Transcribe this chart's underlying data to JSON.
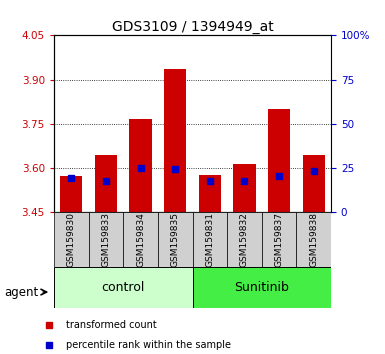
{
  "title": "GDS3109 / 1394949_at",
  "samples": [
    "GSM159830",
    "GSM159833",
    "GSM159834",
    "GSM159835",
    "GSM159831",
    "GSM159832",
    "GSM159837",
    "GSM159838"
  ],
  "groups": [
    "control",
    "control",
    "control",
    "control",
    "Sunitinib",
    "Sunitinib",
    "Sunitinib",
    "Sunitinib"
  ],
  "red_values": [
    3.575,
    3.645,
    3.765,
    3.935,
    3.577,
    3.615,
    3.8,
    3.645
  ],
  "blue_values": [
    3.568,
    3.557,
    3.6,
    3.597,
    3.558,
    3.555,
    3.575,
    3.59
  ],
  "y_min": 3.45,
  "y_max": 4.05,
  "y_ticks_left": [
    3.45,
    3.6,
    3.75,
    3.9,
    4.05
  ],
  "y_ticks_right": [
    0,
    25,
    50,
    75,
    100
  ],
  "grid_values": [
    3.6,
    3.75,
    3.9
  ],
  "bar_color": "#cc0000",
  "blue_color": "#0000cc",
  "control_color": "#ccffcc",
  "sunitinib_color": "#44ee44",
  "tick_color_left": "#cc0000",
  "tick_color_right": "#0000cc",
  "bar_width": 0.65,
  "sample_label_fontsize": 6.5,
  "group_label_fontsize": 9,
  "legend_fontsize": 7,
  "title_fontsize": 10
}
